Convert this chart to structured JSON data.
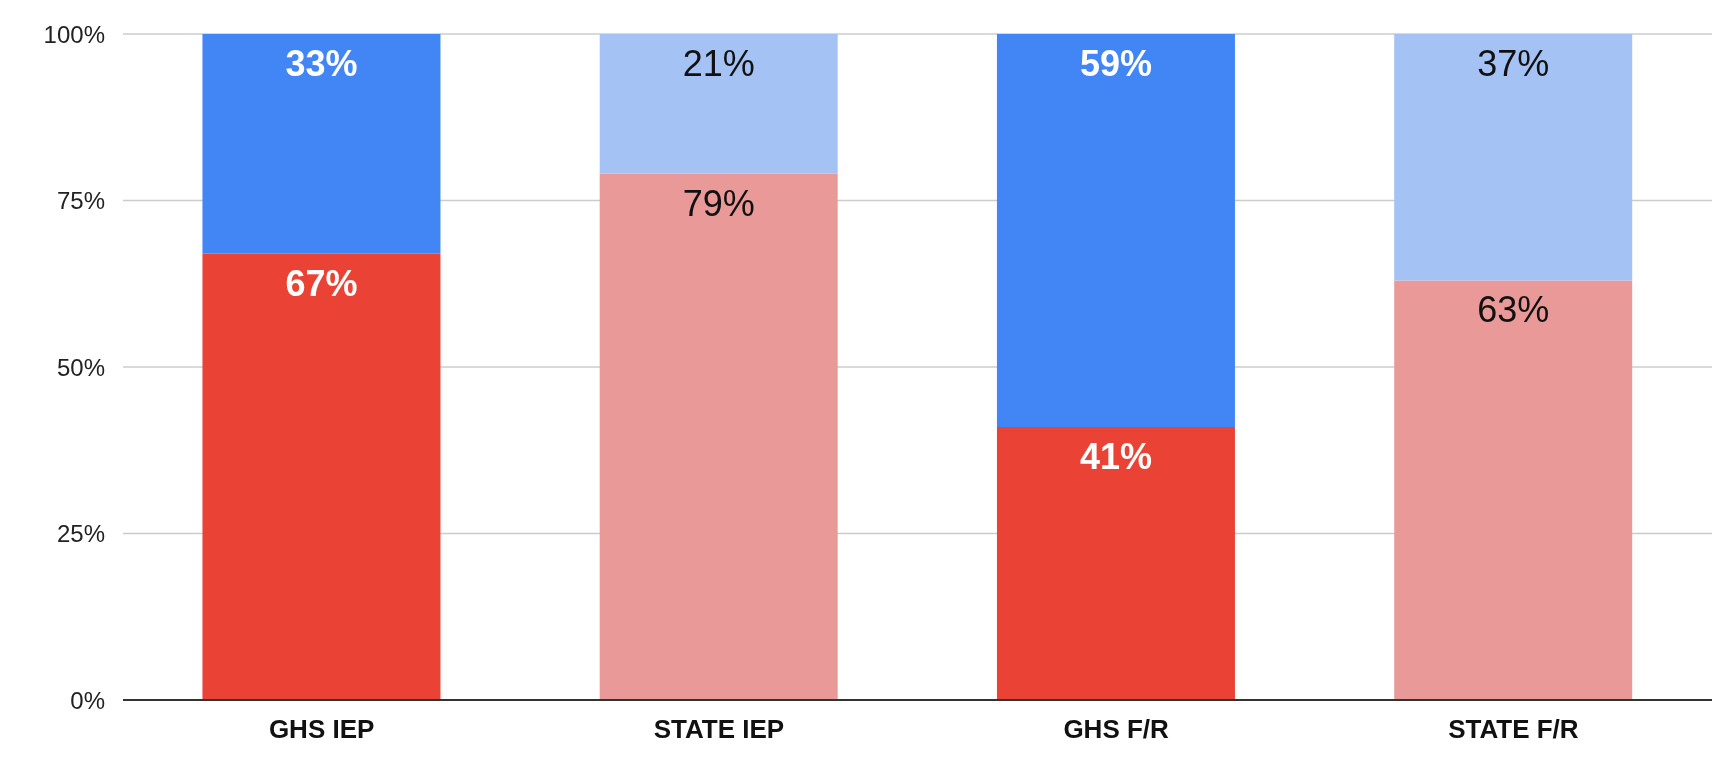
{
  "chart_data": {
    "type": "bar",
    "stacked": true,
    "categories": [
      "GHS IEP",
      "STATE IEP",
      "GHS F/R",
      "STATE F/R"
    ],
    "series": [
      {
        "colors": [
          "#ea4335",
          "#e99a98",
          "#ea4335",
          "#e99a98"
        ],
        "values": [
          67,
          79,
          41,
          63
        ],
        "value_labels": [
          "67%",
          "79%",
          "41%",
          "63%"
        ]
      },
      {
        "colors": [
          "#4285f4",
          "#a4c2f4",
          "#4285f4",
          "#a4c2f4"
        ],
        "values": [
          33,
          21,
          59,
          37
        ],
        "value_labels": [
          "33%",
          "21%",
          "59%",
          "37%"
        ]
      }
    ],
    "ylim": [
      0,
      100
    ],
    "yticks": [
      {
        "value": 0,
        "label": "0%"
      },
      {
        "value": 25,
        "label": "25%"
      },
      {
        "value": 50,
        "label": "50%"
      },
      {
        "value": 75,
        "label": "75%"
      },
      {
        "value": 100,
        "label": "100%"
      }
    ],
    "grid": "y",
    "legend": false
  }
}
